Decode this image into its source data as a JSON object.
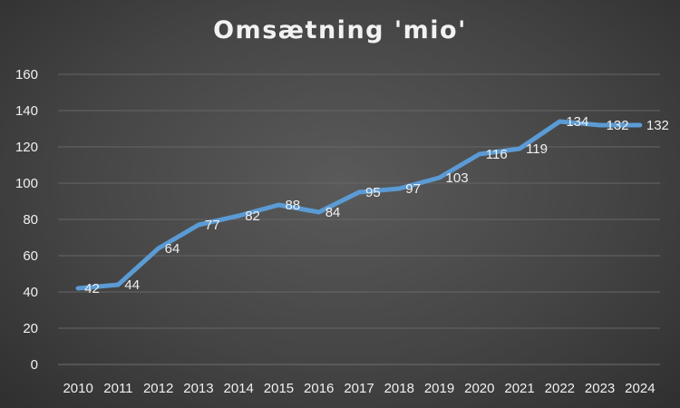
{
  "chart_data": {
    "type": "line",
    "title": "Omsætning 'mio'",
    "xlabel": "",
    "ylabel": "",
    "categories": [
      "2010",
      "2011",
      "2012",
      "2013",
      "2014",
      "2015",
      "2016",
      "2017",
      "2018",
      "2019",
      "2020",
      "2021",
      "2022",
      "2023",
      "2024"
    ],
    "series": [
      {
        "values": [
          42,
          44,
          64,
          77,
          82,
          88,
          84,
          95,
          97,
          103,
          116,
          119,
          134,
          132,
          132
        ]
      }
    ],
    "ylim": [
      0,
      160
    ],
    "yticks": [
      0,
      20,
      40,
      60,
      80,
      100,
      120,
      140,
      160
    ],
    "grid": true,
    "legend": "none",
    "line_color": "#5b9bd5",
    "data_labels": true
  }
}
